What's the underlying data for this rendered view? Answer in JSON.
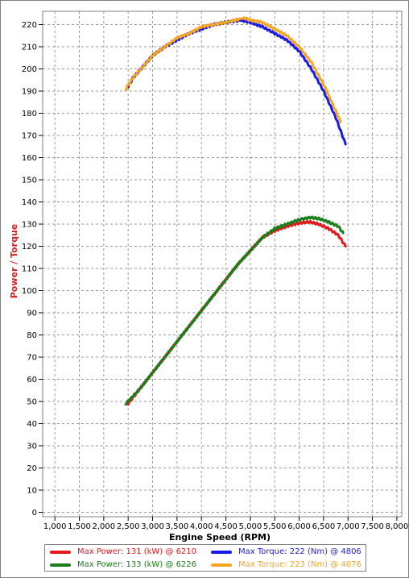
{
  "chart_data": {
    "type": "line",
    "xlabel": "Engine Speed (RPM)",
    "ylabel": "Power / Torque",
    "xlim": [
      750,
      8100
    ],
    "ylim": [
      -2,
      226
    ],
    "x_ticks": [
      "1,000",
      "1,500",
      "2,000",
      "2,500",
      "3,000",
      "3,500",
      "4,000",
      "4,500",
      "5,000",
      "5,500",
      "6,000",
      "6,500",
      "7,000",
      "7,500",
      "8,000"
    ],
    "y_ticks": [
      "0",
      "10",
      "20",
      "30",
      "40",
      "50",
      "60",
      "70",
      "80",
      "90",
      "100",
      "110",
      "120",
      "130",
      "140",
      "150",
      "160",
      "170",
      "180",
      "190",
      "200",
      "210",
      "220"
    ],
    "grid": true,
    "legend_placement": "bottom",
    "series": [
      {
        "name": "Max Power: 131 (kW) @ 6210",
        "color": "#e31a1c",
        "x": [
          2500,
          2750,
          3000,
          3250,
          3500,
          3750,
          4000,
          4250,
          4500,
          4750,
          5000,
          5250,
          5500,
          5750,
          6000,
          6210,
          6400,
          6600,
          6800,
          6950
        ],
        "y": [
          49,
          56,
          63,
          70,
          77,
          84,
          91,
          98,
          105,
          112,
          118,
          124,
          127,
          129,
          130.5,
          131,
          130,
          128,
          125,
          120
        ]
      },
      {
        "name": "Max Power: 133 (kW) @ 6226",
        "color": "#1a7f1a",
        "x": [
          2450,
          2750,
          3000,
          3250,
          3500,
          3750,
          4000,
          4250,
          4500,
          4750,
          5000,
          5250,
          5500,
          5750,
          6000,
          6226,
          6400,
          6600,
          6800,
          6900
        ],
        "y": [
          49,
          56,
          63,
          70,
          77,
          84,
          91,
          98,
          105,
          112,
          118,
          124,
          128,
          130,
          132,
          133,
          132.5,
          131,
          129,
          126
        ]
      },
      {
        "name": "Max Torque: 222 (Nm) @ 4806",
        "color": "#1a1ae6",
        "x": [
          2500,
          2600,
          2800,
          3000,
          3250,
          3500,
          3750,
          4000,
          4250,
          4500,
          4806,
          5000,
          5250,
          5500,
          5750,
          6000,
          6250,
          6500,
          6750,
          6950
        ],
        "y": [
          192,
          196,
          201,
          206,
          210,
          213,
          216,
          218,
          220,
          221,
          222,
          221,
          219,
          216,
          213,
          208,
          200,
          190,
          178,
          166
        ]
      },
      {
        "name": "Max Torque: 223 (Nm) @ 4876",
        "color": "#f5a623",
        "x": [
          2450,
          2600,
          2800,
          3000,
          3250,
          3500,
          3750,
          4000,
          4250,
          4500,
          4876,
          5000,
          5250,
          5500,
          5750,
          6000,
          6250,
          6500,
          6750,
          6850
        ],
        "y": [
          191,
          196,
          201,
          206,
          210,
          214,
          216,
          219,
          220,
          221,
          223,
          222,
          221,
          218,
          215,
          210,
          203,
          193,
          181,
          176
        ]
      }
    ]
  }
}
